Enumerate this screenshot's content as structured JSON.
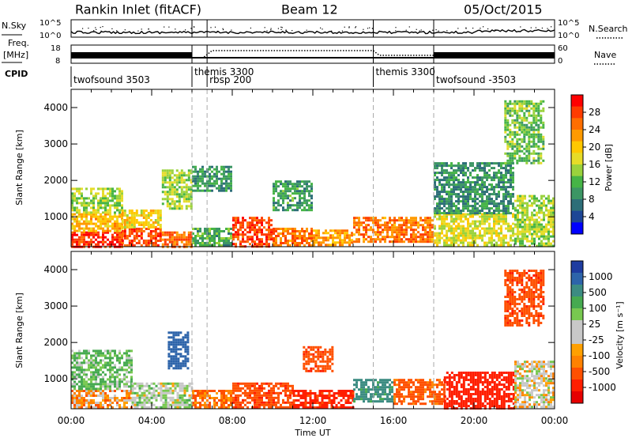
{
  "header": {
    "station": "Rankin Inlet (fitACF)",
    "beam": "Beam 12",
    "date": "05/Oct/2015"
  },
  "strip": {
    "nsky_label": "N.Sky",
    "freq_label_1": "Freq.",
    "freq_label_2": "[MHz]",
    "cpid_label": "CPID",
    "nsearch_label": "N.Search",
    "nave_label": "Nave",
    "nsky_ticks": [
      "10^5",
      "10^0"
    ],
    "nsearch_ticks": [
      "10^5",
      "10^0"
    ],
    "freq_ticks": [
      "18",
      "8"
    ],
    "nave_ticks": [
      "60",
      "0"
    ]
  },
  "cpid_segments": [
    {
      "label": "twofsound 3503",
      "start_hr": 0.0
    },
    {
      "label": "themis 3300",
      "start_hr": 6.0
    },
    {
      "label": "rbsp 200",
      "start_hr": 6.75
    },
    {
      "label": "themis 3300",
      "start_hr": 15.0
    },
    {
      "label": "twofsound -3503",
      "start_hr": 18.0
    }
  ],
  "mode_boundaries_hr": [
    6.0,
    6.75,
    15.0,
    18.0
  ],
  "power_colorbar": {
    "label": "Power [dB]",
    "ticks": [
      "28",
      "24",
      "20",
      "16",
      "12",
      "8",
      "4"
    ],
    "colors": [
      "#ff0000",
      "#ff3c00",
      "#ff6e00",
      "#ff9a00",
      "#ffc800",
      "#e6dc28",
      "#9ad23c",
      "#46b446",
      "#3c9664",
      "#2d6e78",
      "#1e4696",
      "#0000ff"
    ]
  },
  "velocity_colorbar": {
    "label": "Velocity [m s⁻¹]",
    "ticks": [
      "1000",
      "500",
      "100",
      "25",
      "-25",
      "-100",
      "-500",
      "-1000"
    ],
    "colors": [
      "#1e3ca0",
      "#2d64aa",
      "#3c8c82",
      "#46aa50",
      "#78c850",
      "#c8c8c8",
      "#c8c8c8",
      "#ffa000",
      "#ff8200",
      "#ff5000",
      "#ff1e00",
      "#e60000"
    ]
  },
  "chart_data": [
    {
      "type": "heatmap",
      "title": "Rankin Inlet (fitACF) Beam 12 05/Oct/2015",
      "quantity": "Power",
      "xlabel": "Time UT",
      "ylabel": "Slant Range [km]",
      "x_ticks": [
        "00:00",
        "04:00",
        "08:00",
        "12:00",
        "16:00",
        "20:00",
        "00:00"
      ],
      "y_ticks": [
        "1000",
        "2000",
        "3000",
        "4000"
      ],
      "xlim_hr": [
        0,
        24
      ],
      "ylim_km": [
        180,
        4500
      ],
      "colorbar_range_db": [
        0,
        30
      ],
      "regions": [
        {
          "t0": 0.0,
          "t1": 2.5,
          "r0": 200,
          "r1": 600,
          "v": 28
        },
        {
          "t0": 0.0,
          "t1": 2.5,
          "r0": 600,
          "r1": 1100,
          "v": 20
        },
        {
          "t0": 0.0,
          "t1": 2.5,
          "r0": 1100,
          "r1": 1800,
          "v": 14
        },
        {
          "t0": 2.5,
          "t1": 4.5,
          "r0": 200,
          "r1": 700,
          "v": 27
        },
        {
          "t0": 2.5,
          "t1": 4.5,
          "r0": 700,
          "r1": 1200,
          "v": 18
        },
        {
          "t0": 4.5,
          "t1": 6.0,
          "r0": 200,
          "r1": 600,
          "v": 25
        },
        {
          "t0": 4.5,
          "t1": 6.0,
          "r0": 1200,
          "r1": 2300,
          "v": 14
        },
        {
          "t0": 6.0,
          "t1": 8.0,
          "r0": 200,
          "r1": 700,
          "v": 10
        },
        {
          "t0": 6.0,
          "t1": 8.0,
          "r0": 1700,
          "r1": 2400,
          "v": 8
        },
        {
          "t0": 8.0,
          "t1": 10.0,
          "r0": 200,
          "r1": 1000,
          "v": 27
        },
        {
          "t0": 10.0,
          "t1": 12.0,
          "r0": 200,
          "r1": 700,
          "v": 24
        },
        {
          "t0": 10.0,
          "t1": 12.0,
          "r0": 1200,
          "r1": 2000,
          "v": 9
        },
        {
          "t0": 12.0,
          "t1": 14.0,
          "r0": 200,
          "r1": 650,
          "v": 22
        },
        {
          "t0": 14.0,
          "t1": 18.0,
          "r0": 300,
          "r1": 1000,
          "v": 24
        },
        {
          "t0": 18.0,
          "t1": 22.0,
          "r0": 200,
          "r1": 1100,
          "v": 16
        },
        {
          "t0": 18.0,
          "t1": 22.0,
          "r0": 1100,
          "r1": 2500,
          "v": 8
        },
        {
          "t0": 22.0,
          "t1": 24.0,
          "r0": 200,
          "r1": 1600,
          "v": 14
        },
        {
          "t0": 21.5,
          "t1": 23.5,
          "r0": 2500,
          "r1": 4200,
          "v": 12
        }
      ]
    },
    {
      "type": "heatmap",
      "quantity": "Velocity",
      "xlabel": "Time UT",
      "ylabel": "Slant Range [km]",
      "x_ticks": [
        "00:00",
        "04:00",
        "08:00",
        "12:00",
        "16:00",
        "20:00",
        "00:00"
      ],
      "y_ticks": [
        "1000",
        "2000",
        "3000",
        "4000"
      ],
      "xlim_hr": [
        0,
        24
      ],
      "ylim_km": [
        180,
        4500
      ],
      "colorbar_range_ms": [
        -1000,
        1000
      ],
      "regions": [
        {
          "t0": 0.0,
          "t1": 3.0,
          "r0": 200,
          "r1": 700,
          "v": -50
        },
        {
          "t0": 0.0,
          "t1": 3.0,
          "r0": 700,
          "r1": 1800,
          "v": 100
        },
        {
          "t0": 3.0,
          "t1": 6.0,
          "r0": 200,
          "r1": 900,
          "v": 40
        },
        {
          "t0": 4.8,
          "t1": 5.8,
          "r0": 1300,
          "r1": 2300,
          "v": 700
        },
        {
          "t0": 6.0,
          "t1": 8.0,
          "r0": 200,
          "r1": 700,
          "v": -100
        },
        {
          "t0": 8.0,
          "t1": 11.0,
          "r0": 200,
          "r1": 900,
          "v": -200
        },
        {
          "t0": 11.0,
          "t1": 14.0,
          "r0": 200,
          "r1": 700,
          "v": -300
        },
        {
          "t0": 11.5,
          "t1": 13.0,
          "r0": 1200,
          "r1": 1900,
          "v": -200
        },
        {
          "t0": 14.0,
          "t1": 16.0,
          "r0": 400,
          "r1": 1000,
          "v": 300
        },
        {
          "t0": 16.0,
          "t1": 18.5,
          "r0": 300,
          "r1": 1000,
          "v": -150
        },
        {
          "t0": 18.5,
          "t1": 22.0,
          "r0": 200,
          "r1": 1200,
          "v": -400
        },
        {
          "t0": 22.0,
          "t1": 24.0,
          "r0": 200,
          "r1": 1500,
          "v": 0
        },
        {
          "t0": 21.5,
          "t1": 23.5,
          "r0": 2500,
          "r1": 4000,
          "v": -200
        }
      ]
    }
  ]
}
